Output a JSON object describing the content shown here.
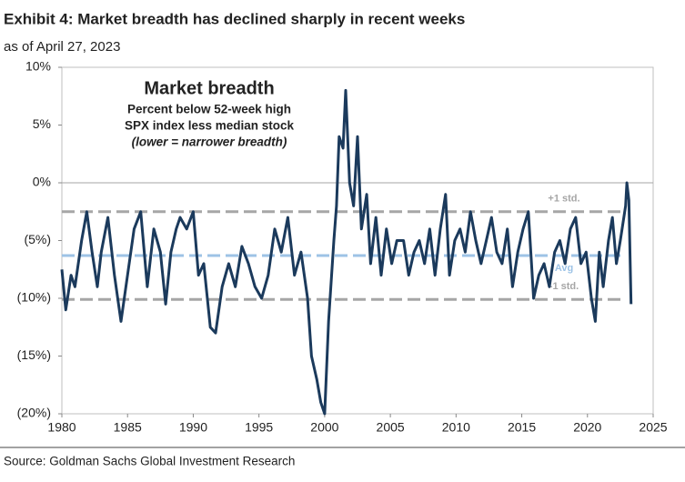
{
  "chart_data": {
    "type": "line",
    "title": "Exhibit 4: Market breadth has declined sharply in recent weeks",
    "subtitle": "as of April 27, 2023",
    "source": "Source: Goldman Sachs Global Investment Research",
    "annotation": {
      "heading": "Market breadth",
      "lines": [
        "Percent below 52-week high",
        "SPX index less median stock"
      ],
      "note": "(lower = narrower breadth)"
    },
    "color": "#1b3a5c",
    "x": [
      1980.0,
      1980.3,
      1980.7,
      1981.0,
      1981.5,
      1981.9,
      1982.3,
      1982.7,
      1983.0,
      1983.5,
      1984.0,
      1984.5,
      1985.0,
      1985.5,
      1986.0,
      1986.5,
      1987.0,
      1987.5,
      1987.9,
      1988.3,
      1988.7,
      1989.0,
      1989.5,
      1990.0,
      1990.4,
      1990.8,
      1991.3,
      1991.7,
      1992.2,
      1992.7,
      1993.2,
      1993.7,
      1994.2,
      1994.7,
      1995.2,
      1995.7,
      1996.2,
      1996.7,
      1997.2,
      1997.7,
      1998.2,
      1998.7,
      1999.0,
      1999.4,
      1999.7,
      2000.0,
      2000.3,
      2000.7,
      2000.9,
      2001.1,
      2001.4,
      2001.6,
      2001.9,
      2002.2,
      2002.5,
      2002.8,
      2003.2,
      2003.5,
      2003.9,
      2004.3,
      2004.7,
      2005.1,
      2005.5,
      2006.0,
      2006.4,
      2006.8,
      2007.2,
      2007.6,
      2008.0,
      2008.4,
      2008.8,
      2009.2,
      2009.5,
      2009.9,
      2010.3,
      2010.7,
      2011.1,
      2011.5,
      2011.9,
      2012.3,
      2012.7,
      2013.1,
      2013.5,
      2013.9,
      2014.3,
      2014.7,
      2015.1,
      2015.5,
      2015.9,
      2016.3,
      2016.7,
      2017.1,
      2017.5,
      2017.9,
      2018.3,
      2018.7,
      2019.1,
      2019.5,
      2019.9,
      2020.3,
      2020.6,
      2020.9,
      2021.2,
      2021.6,
      2021.9,
      2022.2,
      2022.5,
      2022.9,
      2023.0,
      2023.15,
      2023.32
    ],
    "values": [
      -7.5,
      -11,
      -8,
      -9,
      -5,
      -2.5,
      -6,
      -9,
      -6,
      -3,
      -8,
      -12,
      -8,
      -4,
      -2.5,
      -9,
      -4,
      -6,
      -10.5,
      -6,
      -4,
      -3,
      -4,
      -2.5,
      -8,
      -7,
      -12.5,
      -13,
      -9,
      -7,
      -9,
      -5.5,
      -7,
      -9,
      -10,
      -8,
      -4,
      -6,
      -3,
      -8,
      -6,
      -10,
      -15,
      -17,
      -19,
      -20,
      -12,
      -5,
      -2,
      4,
      3,
      8,
      0,
      -2,
      4,
      -4,
      -1,
      -7,
      -3,
      -8,
      -4,
      -7,
      -5,
      -5,
      -8,
      -6,
      -5,
      -7,
      -4,
      -8,
      -4,
      -1,
      -8,
      -5,
      -4,
      -6,
      -2.5,
      -5,
      -7,
      -5,
      -3,
      -6,
      -7,
      -4,
      -9,
      -6,
      -4,
      -2.5,
      -10,
      -8,
      -7,
      -9,
      -6,
      -5,
      -7,
      -4,
      -3,
      -7,
      -6,
      -10,
      -12,
      -6,
      -9,
      -5,
      -3,
      -7,
      -5,
      -2,
      0,
      -1.5,
      -10.5
    ],
    "ref_lines": [
      {
        "label": "+1 std.",
        "value": -2.5,
        "color": "#a6a6a6"
      },
      {
        "label": "Avg",
        "value": -6.3,
        "color": "#9dc3e6"
      },
      {
        "label": "-1 std.",
        "value": -10.1,
        "color": "#a6a6a6"
      }
    ],
    "xlim": [
      1980,
      2025
    ],
    "xticks": [
      1980,
      1985,
      1990,
      1995,
      2000,
      2005,
      2010,
      2015,
      2020,
      2025
    ],
    "ylim": [
      -20,
      10
    ],
    "yticks": [
      {
        "value": 10,
        "label": "10%"
      },
      {
        "value": 5,
        "label": "5%"
      },
      {
        "value": 0,
        "label": "0%"
      },
      {
        "value": -5,
        "label": "(5%)"
      },
      {
        "value": -10,
        "label": "(10%)"
      },
      {
        "value": -15,
        "label": "(15%)"
      },
      {
        "value": -20,
        "label": "(20%)"
      }
    ]
  }
}
